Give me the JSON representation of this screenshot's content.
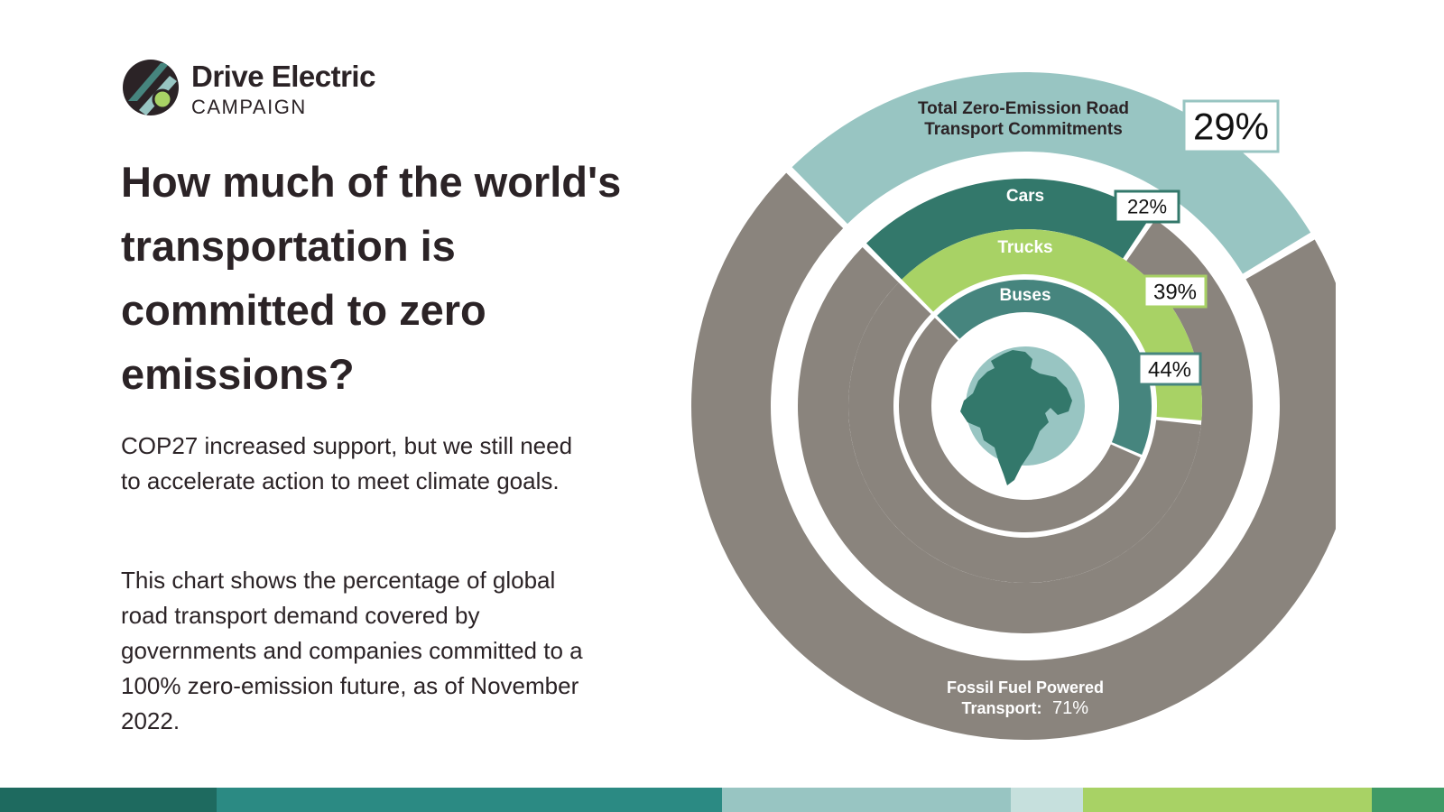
{
  "brand": {
    "name": "Drive Electric",
    "subtitle": "CAMPAIGN"
  },
  "headline": "How much of the world's transportation is committed to zero emissions?",
  "paragraphs": [
    "COP27 increased support, but we still need to accelerate action to meet climate goals.",
    "This chart shows the percentage of global road transport demand covered by governments and companies committed to a 100% zero-emission future, as of November 2022."
  ],
  "colors": {
    "fossil": "#8a847d",
    "total": "#98c5c2",
    "cars": "#33786b",
    "trucks": "#a8d265",
    "buses": "#46857e",
    "globe_ocean": "#98c5c2",
    "globe_land": "#33786b"
  },
  "chart_data": {
    "type": "radial-bar",
    "series": [
      {
        "name": "Total Zero-Emission Road Transport Commitments",
        "value": 29,
        "label": "29%"
      },
      {
        "name": "Cars",
        "value": 22,
        "label": "22%"
      },
      {
        "name": "Trucks",
        "value": 39,
        "label": "39%"
      },
      {
        "name": "Buses",
        "value": 44,
        "label": "44%"
      }
    ],
    "remainder": {
      "label_line1": "Fossil Fuel Powered",
      "label_line2": "Transport:",
      "value": 71,
      "label": "71%"
    },
    "center_icon": "globe-icon"
  },
  "bottom_bar": [
    {
      "color": "#1e6a5f",
      "width": 240
    },
    {
      "color": "#2b8a83",
      "width": 560
    },
    {
      "color": "#98c5c2",
      "width": 320
    },
    {
      "color": "#c6e0dd",
      "width": 80
    },
    {
      "color": "#a8d265",
      "width": 320
    },
    {
      "color": "#3f9a66",
      "width": 80
    }
  ]
}
